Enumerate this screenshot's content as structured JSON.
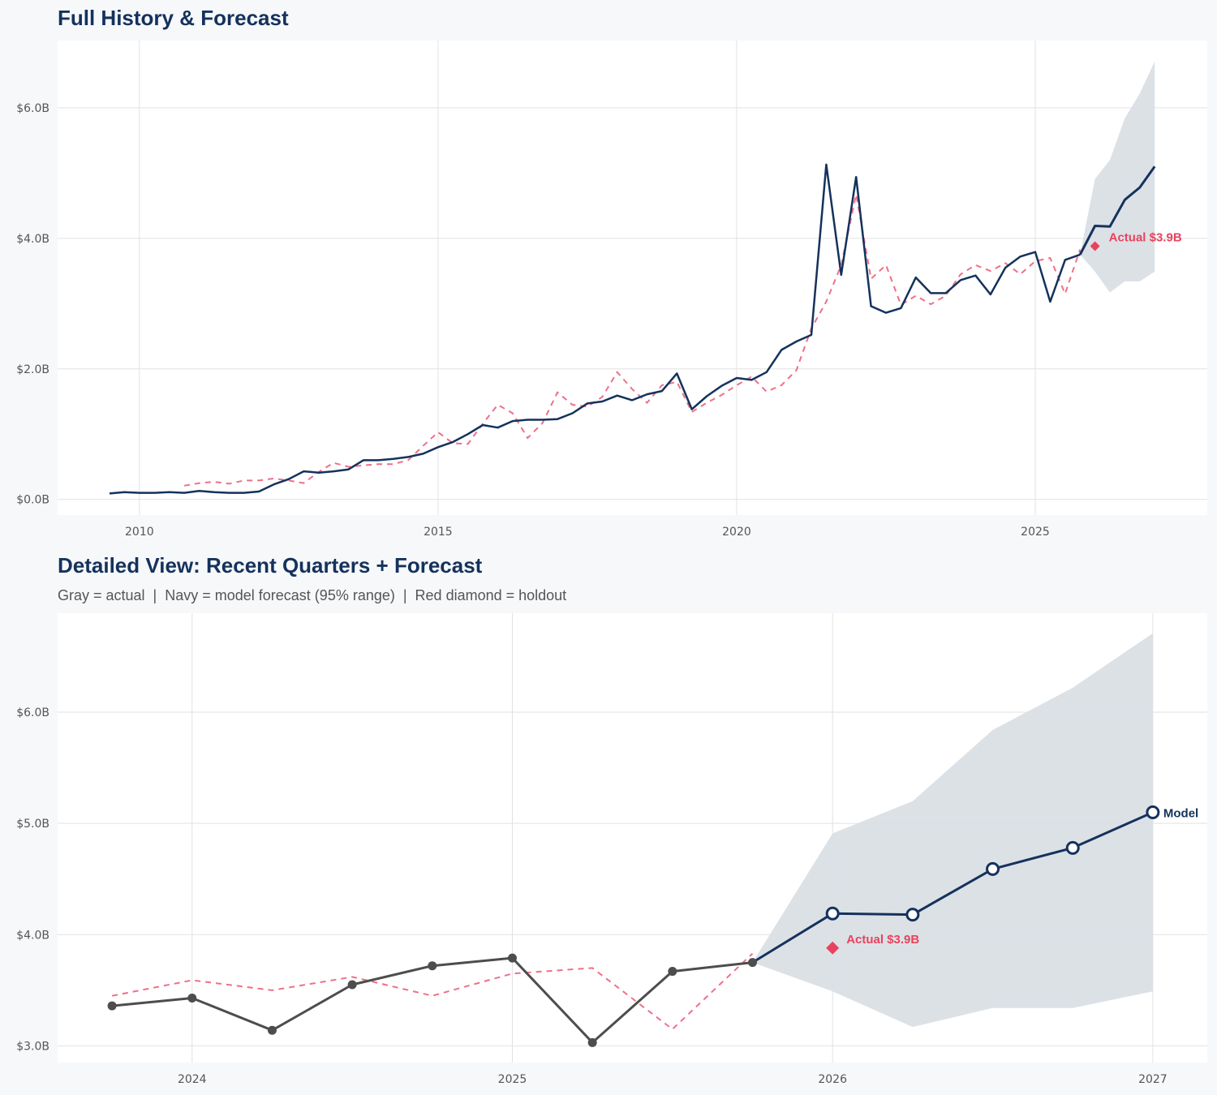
{
  "colors": {
    "navy": "#14325c",
    "gray_actual": "#4d4d4d",
    "fitted_dashed": "#ee7088",
    "holdout": "#e8435e",
    "band": "#dadfe5",
    "grid": "#e2e2e2",
    "background": "#f7f8fa",
    "plot_background": "#ffffff"
  },
  "chart_data": [
    {
      "type": "line",
      "title": "Full History & Forecast",
      "xlim": [
        2008.63,
        2027.88
      ],
      "ylim": [
        -0.24,
        7.03
      ],
      "grid": true,
      "x_ticks": [
        {
          "value": 2010,
          "label": "2010"
        },
        {
          "value": 2015,
          "label": "2015"
        },
        {
          "value": 2020,
          "label": "2020"
        },
        {
          "value": 2025,
          "label": "2025"
        }
      ],
      "y_ticks": [
        {
          "value": 0,
          "label": "$0.0B"
        },
        {
          "value": 2,
          "label": "$2.0B"
        },
        {
          "value": 4,
          "label": "$4.0B"
        },
        {
          "value": 6,
          "label": "$6.0B"
        }
      ],
      "actual": {
        "x_start": 2009.5,
        "x_step": 0.25,
        "values": [
          0.09,
          0.11,
          0.1,
          0.1,
          0.11,
          0.1,
          0.13,
          0.11,
          0.1,
          0.1,
          0.12,
          0.23,
          0.31,
          0.43,
          0.41,
          0.43,
          0.46,
          0.6,
          0.6,
          0.62,
          0.65,
          0.7,
          0.8,
          0.88,
          1.0,
          1.14,
          1.1,
          1.2,
          1.22,
          1.22,
          1.23,
          1.32,
          1.47,
          1.5,
          1.59,
          1.52,
          1.61,
          1.66,
          1.93,
          1.38,
          1.58,
          1.74,
          1.86,
          1.83,
          1.95,
          2.29,
          2.42,
          2.52,
          5.13,
          3.44,
          4.94,
          2.96,
          2.86,
          2.93,
          3.4,
          3.16,
          3.16,
          3.36,
          3.43,
          3.14,
          3.55,
          3.72,
          3.79,
          3.03,
          3.67,
          3.75
        ]
      },
      "fitted": {
        "x_start": 2010.75,
        "x_step": 0.25,
        "values": [
          0.21,
          0.25,
          0.27,
          0.24,
          0.29,
          0.29,
          0.32,
          0.29,
          0.25,
          0.42,
          0.56,
          0.5,
          0.52,
          0.54,
          0.54,
          0.6,
          0.82,
          1.03,
          0.86,
          0.85,
          1.16,
          1.45,
          1.32,
          0.94,
          1.17,
          1.64,
          1.45,
          1.42,
          1.57,
          1.95,
          1.69,
          1.48,
          1.75,
          1.8,
          1.34,
          1.48,
          1.6,
          1.75,
          1.88,
          1.65,
          1.75,
          1.98,
          2.62,
          3.03,
          3.59,
          4.67,
          3.38,
          3.59,
          2.98,
          3.12,
          2.99,
          3.12,
          3.45,
          3.59,
          3.5,
          3.62,
          3.45,
          3.65,
          3.7,
          3.15,
          3.83
        ]
      },
      "forecast": {
        "x": [
          2025.75,
          2026.0,
          2026.25,
          2026.5,
          2026.75,
          2027.0
        ],
        "values": [
          3.75,
          4.19,
          4.18,
          4.59,
          4.78,
          5.1
        ],
        "upper": [
          3.75,
          4.91,
          5.2,
          5.84,
          6.22,
          6.71
        ],
        "lower": [
          3.75,
          3.49,
          3.17,
          3.34,
          3.34,
          3.49
        ]
      },
      "holdout": {
        "x": 2026.0,
        "value": 3.88,
        "label": "Actual $3.9B"
      }
    },
    {
      "type": "line",
      "title": "Detailed View: Recent Quarters + Forecast",
      "subtitle": "Gray = actual  |  Navy = model forecast (95% range)  |  Red diamond = holdout",
      "xlim": [
        2023.58,
        2027.17
      ],
      "ylim": [
        2.85,
        6.89
      ],
      "grid": true,
      "x_ticks": [
        {
          "value": 2024,
          "label": "2024"
        },
        {
          "value": 2025,
          "label": "2025"
        },
        {
          "value": 2026,
          "label": "2026"
        },
        {
          "value": 2027,
          "label": "2027"
        }
      ],
      "y_ticks": [
        {
          "value": 3,
          "label": "$3.0B"
        },
        {
          "value": 4,
          "label": "$4.0B"
        },
        {
          "value": 5,
          "label": "$5.0B"
        },
        {
          "value": 6,
          "label": "$6.0B"
        }
      ],
      "actual": {
        "x_start": 2023.75,
        "x_step": 0.25,
        "values": [
          3.36,
          3.43,
          3.14,
          3.55,
          3.72,
          3.79,
          3.03,
          3.67,
          3.75
        ]
      },
      "fitted": {
        "x_start": 2023.75,
        "x_step": 0.25,
        "values": [
          3.45,
          3.59,
          3.5,
          3.62,
          3.45,
          3.65,
          3.7,
          3.15,
          3.83
        ]
      },
      "forecast": {
        "x": [
          2025.75,
          2026.0,
          2026.25,
          2026.5,
          2026.75,
          2027.0
        ],
        "values": [
          3.75,
          4.19,
          4.18,
          4.59,
          4.78,
          5.1
        ],
        "upper": [
          3.75,
          4.91,
          5.2,
          5.84,
          6.22,
          6.71
        ],
        "lower": [
          3.75,
          3.49,
          3.17,
          3.34,
          3.34,
          3.49
        ],
        "label": "Model"
      },
      "holdout": {
        "x": 2026.0,
        "value": 3.88,
        "label": "Actual $3.9B"
      }
    }
  ]
}
